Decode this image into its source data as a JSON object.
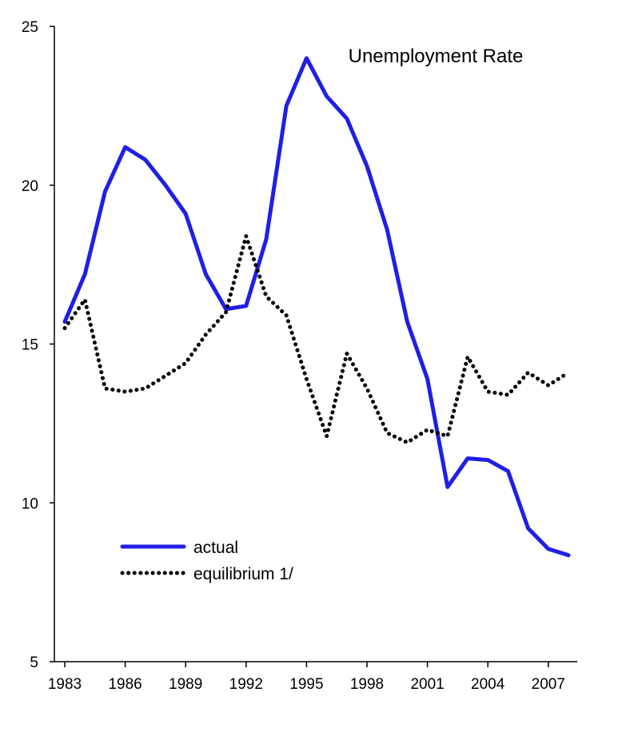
{
  "chart_data": {
    "type": "line",
    "title": "Unemployment Rate",
    "xlabel": "",
    "ylabel": "",
    "xlim": [
      1983,
      2008
    ],
    "ylim": [
      5,
      25
    ],
    "y_ticks": [
      5,
      10,
      15,
      20,
      25
    ],
    "x_ticks": [
      "1983",
      "1986",
      "1989",
      "1992",
      "1995",
      "1998",
      "2001",
      "2004",
      "2007"
    ],
    "grid": false,
    "legend_position": "lower-left",
    "x": [
      1983,
      1984,
      1985,
      1986,
      1987,
      1988,
      1989,
      1990,
      1991,
      1992,
      1993,
      1994,
      1995,
      1996,
      1997,
      1998,
      1999,
      2000,
      2001,
      2002,
      2003,
      2004,
      2005,
      2006,
      2007,
      2008
    ],
    "series": [
      {
        "name": "actual",
        "color": "#1f1fe6",
        "style": "solid",
        "values": [
          15.7,
          17.2,
          19.8,
          21.2,
          20.8,
          20.0,
          19.1,
          17.2,
          16.1,
          16.2,
          18.3,
          22.5,
          24.0,
          22.8,
          22.1,
          20.6,
          18.6,
          15.7,
          13.9,
          10.5,
          11.4,
          11.35,
          11.0,
          9.2,
          8.55,
          8.35
        ]
      },
      {
        "name": "equilibrium 1/",
        "color": "#000000",
        "style": "dotted",
        "values": [
          15.5,
          16.4,
          13.6,
          13.5,
          13.6,
          14.0,
          14.4,
          15.3,
          16.0,
          18.4,
          16.5,
          15.9,
          13.9,
          12.1,
          14.7,
          13.6,
          12.2,
          11.9,
          12.3,
          12.1,
          14.6,
          13.5,
          13.4,
          14.1,
          13.7,
          14.1
        ]
      }
    ]
  }
}
